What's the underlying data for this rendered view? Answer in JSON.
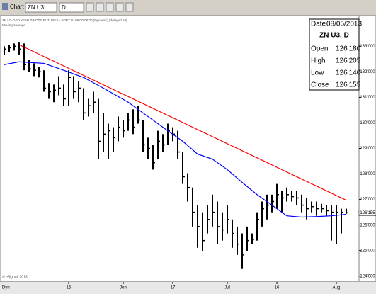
{
  "toolbar": {
    "title": "Chart",
    "symbol": "ZN U3",
    "interval": "D"
  },
  "chart_data": {
    "type": "ohlc",
    "subtitle": "ZN U3-D-10 YEAR T-NOTE FUTURES - FORT D, 08:00-08:00 (Dynamic) (delayed 10)",
    "indicator_label": "Moving Average",
    "copyright": "© eSignal, 2013",
    "x_mode": "Dyn",
    "categories": [
      null,
      null,
      null,
      null,
      null,
      null,
      null,
      null,
      null,
      null,
      null,
      null,
      null,
      "15",
      null,
      null,
      null,
      null,
      null,
      null,
      null,
      null,
      null,
      null,
      "Jun",
      null,
      null,
      null,
      null,
      null,
      null,
      null,
      null,
      null,
      "17",
      null,
      null,
      null,
      null,
      null,
      null,
      null,
      null,
      null,
      null,
      "Jul",
      null,
      null,
      null,
      null,
      null,
      null,
      null,
      null,
      null,
      "16",
      null,
      null,
      null,
      null,
      null,
      null,
      null,
      null,
      null,
      null,
      null,
      "Aug",
      null,
      null
    ],
    "high": [
      133.0,
      133.06,
      133.11,
      133.17,
      133.11,
      132.47,
      132.33,
      132.19,
      132.06,
      131.56,
      131.5,
      131.83,
      131.5,
      132.06,
      131.83,
      131.64,
      131.36,
      130.94,
      131.22,
      130.94,
      130.39,
      129.97,
      129.83,
      130.25,
      130.11,
      130.39,
      130.53,
      130.67,
      130.11,
      129.42,
      129.14,
      129.69,
      129.56,
      129.97,
      129.83,
      129.69,
      128.86,
      128.03,
      127.47,
      126.78,
      126.5,
      126.78,
      127.19,
      126.92,
      126.5,
      126.78,
      126.22,
      125.94,
      125.67,
      125.94,
      125.67,
      126.5,
      126.92,
      127.19,
      127.19,
      127.61,
      127.33,
      127.47,
      127.33,
      127.33,
      127.19,
      127.06,
      126.92,
      126.92,
      126.83,
      126.78,
      126.78,
      126.78,
      126.64,
      126.64
    ],
    "low": [
      132.67,
      132.78,
      132.83,
      132.67,
      132.06,
      132.0,
      131.83,
      131.78,
      131.22,
      130.94,
      130.81,
      131.08,
      130.67,
      130.67,
      130.94,
      130.81,
      130.11,
      130.25,
      130.39,
      128.58,
      128.86,
      128.58,
      128.86,
      129.28,
      129.42,
      129.69,
      129.56,
      129.97,
      128.86,
      128.58,
      128.17,
      128.58,
      128.86,
      129.14,
      129.28,
      128.58,
      127.61,
      126.92,
      125.94,
      125.11,
      124.97,
      125.67,
      125.94,
      125.25,
      125.39,
      125.67,
      125.11,
      124.83,
      124.28,
      124.97,
      125.25,
      125.39,
      125.94,
      126.22,
      126.5,
      126.64,
      126.5,
      126.92,
      126.92,
      126.78,
      126.5,
      126.22,
      126.5,
      126.36,
      126.5,
      126.36,
      125.39,
      125.25,
      125.67,
      126.44
    ],
    "close": [
      132.89,
      132.94,
      133.0,
      132.89,
      132.28,
      132.11,
      132.06,
      132.0,
      131.36,
      131.22,
      131.28,
      131.36,
      130.94,
      131.78,
      131.22,
      131.36,
      130.39,
      130.67,
      130.81,
      129.28,
      129.56,
      129.69,
      129.42,
      129.83,
      129.69,
      130.11,
      129.83,
      130.11,
      129.14,
      129.0,
      128.44,
      129.28,
      129.14,
      129.69,
      129.56,
      128.86,
      127.89,
      127.47,
      126.5,
      125.94,
      125.39,
      126.22,
      126.5,
      125.94,
      125.81,
      126.22,
      125.67,
      125.25,
      124.83,
      125.39,
      125.44,
      126.22,
      126.64,
      126.78,
      126.92,
      127.19,
      127.06,
      127.19,
      127.11,
      127.06,
      126.78,
      126.64,
      126.72,
      126.64,
      126.64,
      126.56,
      126.5,
      126.5,
      126.5,
      126.48
    ],
    "bar_color": "#000000",
    "lines": [
      {
        "color": "#0000ff",
        "x": [
          0,
          3,
          8,
          12,
          16,
          20,
          25,
          29,
          33,
          36,
          39,
          42,
          45,
          48,
          51,
          54,
          57,
          60,
          63,
          66,
          69
        ],
        "values": [
          132.28,
          132.39,
          132.33,
          132.06,
          131.78,
          131.36,
          130.81,
          130.25,
          129.69,
          129.28,
          128.78,
          128.58,
          128.17,
          127.67,
          127.19,
          126.78,
          126.36,
          126.31,
          126.33,
          126.36,
          126.42
        ]
      },
      {
        "color": "#ff0000",
        "x": [
          3,
          69
        ],
        "values": [
          133.06,
          126.97
        ]
      }
    ],
    "ylim": [
      123.8,
      134.2
    ],
    "yticks": [
      {
        "value": 124,
        "label": "124'000"
      },
      {
        "value": 125,
        "label": "125'000"
      },
      {
        "value": 126,
        "label": "126'000"
      },
      {
        "value": 127,
        "label": "127'000"
      },
      {
        "value": 128,
        "label": "128'000"
      },
      {
        "value": 129,
        "label": "129'000"
      },
      {
        "value": 130,
        "label": "130'000"
      },
      {
        "value": 131,
        "label": "131'000"
      },
      {
        "value": 132,
        "label": "132'000"
      },
      {
        "value": 133,
        "label": "133'000"
      }
    ],
    "last_price": {
      "value": 126.48,
      "label": "126'155"
    },
    "info_box": {
      "date_label": "Date",
      "date": "08/05/2013",
      "symbol": "ZN U3, D",
      "rows": [
        [
          "Open",
          "126'180"
        ],
        [
          "High",
          "126'205"
        ],
        [
          "Low",
          "126'140"
        ],
        [
          "Close",
          "126'155"
        ]
      ]
    }
  }
}
